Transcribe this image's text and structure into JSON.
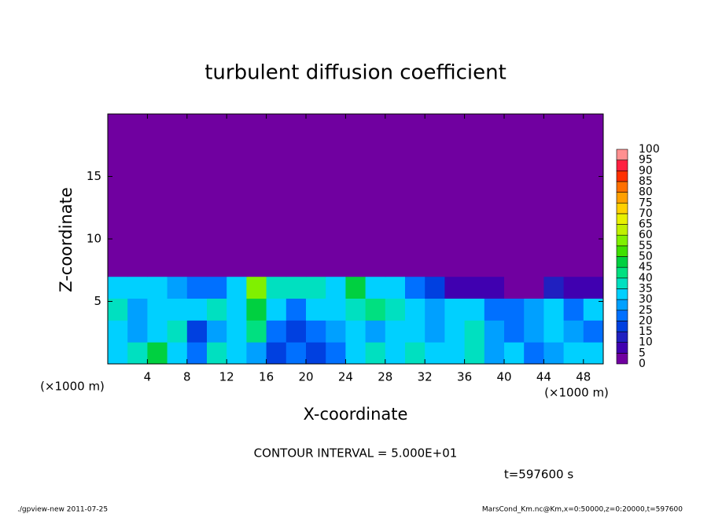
{
  "chart_data": {
    "type": "heatmap",
    "title": "turbulent diffusion coefficient",
    "x_label": "X-coordinate",
    "y_label": "Z-coordinate",
    "x_unit": "(×1000 m)",
    "y_unit": "(×1000 m)",
    "contour_note": "CONTOUR INTERVAL = 5.000E+01",
    "time_note": "t=597600 s",
    "footer_left": "./gpview-new  2011-07-25",
    "footer_right": "MarsCond_Km.nc@Km,x=0:50000,z=0:20000,t=597600",
    "xlim": [
      0,
      50
    ],
    "ylim": [
      0,
      20
    ],
    "xticks": [
      4,
      8,
      12,
      16,
      20,
      24,
      28,
      32,
      36,
      40,
      44,
      48
    ],
    "yticks": [
      5,
      10,
      15
    ],
    "x_edges": [
      0,
      2,
      4,
      6,
      8,
      10,
      12,
      14,
      16,
      18,
      20,
      22,
      24,
      26,
      28,
      30,
      32,
      34,
      36,
      38,
      40,
      42,
      44,
      46,
      48,
      50
    ],
    "z_edges": [
      0,
      1.75,
      3.5,
      5.25,
      7,
      20
    ],
    "values": [
      [
        30,
        35,
        45,
        30,
        20,
        35,
        30,
        25,
        15,
        20,
        15,
        20,
        30,
        35,
        30,
        35,
        30,
        30,
        35,
        25,
        30,
        20,
        25,
        30,
        30
      ],
      [
        30,
        25,
        30,
        35,
        15,
        25,
        30,
        40,
        20,
        15,
        20,
        25,
        30,
        25,
        30,
        30,
        25,
        30,
        35,
        25,
        20,
        25,
        30,
        25,
        20
      ],
      [
        35,
        25,
        30,
        30,
        30,
        35,
        30,
        45,
        30,
        20,
        30,
        30,
        35,
        40,
        35,
        30,
        25,
        30,
        30,
        20,
        20,
        25,
        30,
        20,
        30
      ],
      [
        30,
        30,
        30,
        25,
        20,
        20,
        30,
        55,
        35,
        35,
        35,
        30,
        45,
        30,
        30,
        20,
        15,
        5,
        5,
        5,
        0,
        0,
        10,
        5,
        5
      ],
      [
        0,
        0,
        0,
        0,
        0,
        0,
        0,
        0,
        0,
        0,
        0,
        0,
        0,
        0,
        0,
        0,
        0,
        0,
        0,
        0,
        0,
        0,
        0,
        0,
        0
      ]
    ],
    "colorbar": {
      "levels": [
        0,
        5,
        10,
        15,
        20,
        25,
        30,
        35,
        40,
        45,
        50,
        55,
        60,
        65,
        70,
        75,
        80,
        85,
        90,
        95,
        100
      ],
      "colors": [
        "#7000a0",
        "#4000b0",
        "#2020c0",
        "#0040e0",
        "#0070ff",
        "#00a0ff",
        "#00d0ff",
        "#00e0c0",
        "#00e080",
        "#00d040",
        "#40e000",
        "#80f000",
        "#c0f000",
        "#e8f000",
        "#ffd000",
        "#ffa000",
        "#ff7000",
        "#ff3000",
        "#ff2040",
        "#ff9090"
      ]
    }
  }
}
